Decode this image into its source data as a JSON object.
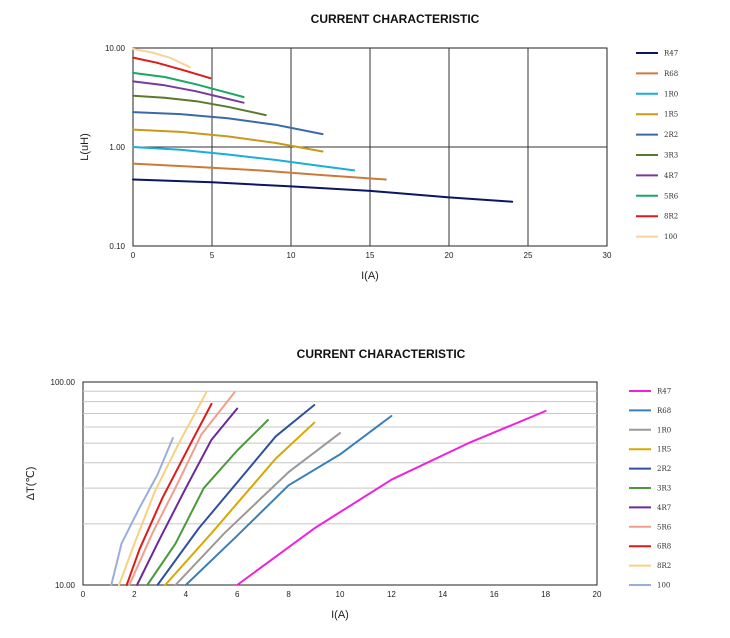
{
  "chart_data": [
    {
      "type": "line",
      "title": "CURRENT CHARACTERISTIC",
      "xlabel": "I(A)",
      "ylabel": "L(uH)",
      "xlim": [
        0,
        30
      ],
      "ylim": [
        0.1,
        10
      ],
      "yscale": "log",
      "xticks": [
        "0",
        "5",
        "10",
        "15",
        "20",
        "25",
        "30"
      ],
      "yticks": [
        "0.10",
        "1.00",
        "10.00"
      ],
      "grid": true,
      "legend_position": "right",
      "series": [
        {
          "name": "R47",
          "color": "#0b1560",
          "x": [
            0,
            5,
            10,
            15,
            20,
            24
          ],
          "y": [
            0.47,
            0.44,
            0.4,
            0.36,
            0.31,
            0.28
          ]
        },
        {
          "name": "R68",
          "color": "#cc7a3a",
          "x": [
            0,
            4,
            8,
            12,
            16
          ],
          "y": [
            0.68,
            0.63,
            0.58,
            0.52,
            0.47
          ]
        },
        {
          "name": "1R0",
          "color": "#1aaed8",
          "x": [
            0,
            3,
            6,
            9,
            12,
            14
          ],
          "y": [
            1.0,
            0.94,
            0.84,
            0.74,
            0.64,
            0.58
          ]
        },
        {
          "name": "1R5",
          "color": "#c89a1a",
          "x": [
            0,
            3,
            6,
            9,
            12
          ],
          "y": [
            1.5,
            1.42,
            1.28,
            1.1,
            0.9
          ]
        },
        {
          "name": "2R2",
          "color": "#3a6aa8",
          "x": [
            0,
            3,
            6,
            9,
            12
          ],
          "y": [
            2.25,
            2.15,
            1.95,
            1.68,
            1.35
          ]
        },
        {
          "name": "3R3",
          "color": "#5a7a2a",
          "x": [
            0,
            2,
            4,
            6,
            8.4
          ],
          "y": [
            3.3,
            3.15,
            2.9,
            2.55,
            2.1
          ]
        },
        {
          "name": "4R7",
          "color": "#7a3a9a",
          "x": [
            0,
            2,
            4,
            5.5,
            7
          ],
          "y": [
            4.6,
            4.2,
            3.65,
            3.2,
            2.8
          ]
        },
        {
          "name": "5R6",
          "color": "#1aa860",
          "x": [
            0,
            2,
            4,
            5.5,
            7
          ],
          "y": [
            5.6,
            5.1,
            4.3,
            3.7,
            3.2
          ]
        },
        {
          "name": "8R2",
          "color": "#dd1a1a",
          "x": [
            0,
            1.5,
            3,
            4.9
          ],
          "y": [
            8.0,
            7.1,
            6.1,
            4.95
          ]
        },
        {
          "name": "100",
          "color": "#f8d49a",
          "x": [
            0,
            1.2,
            2.4,
            3.6
          ],
          "y": [
            9.8,
            9.0,
            7.9,
            6.4
          ]
        }
      ]
    },
    {
      "type": "line",
      "title": "CURRENT CHARACTERISTIC",
      "xlabel": "I(A)",
      "ylabel": "ΔT(℃)",
      "xlim": [
        0,
        20
      ],
      "ylim": [
        10,
        100
      ],
      "yscale": "log",
      "xticks": [
        "0",
        "2",
        "4",
        "6",
        "8",
        "10",
        "12",
        "14",
        "16",
        "18",
        "20"
      ],
      "yticks": [
        "10.00",
        "100.00"
      ],
      "grid": true,
      "legend_position": "right",
      "series": [
        {
          "name": "R47",
          "color": "#ee22dd",
          "x": [
            6,
            9,
            12,
            15,
            18
          ],
          "y": [
            10,
            19,
            33,
            50,
            72
          ]
        },
        {
          "name": "R68",
          "color": "#3a80b8",
          "x": [
            4,
            6,
            8,
            10,
            12
          ],
          "y": [
            10,
            17.5,
            31,
            44,
            68
          ]
        },
        {
          "name": "1R0",
          "color": "#999999",
          "x": [
            3.6,
            5.5,
            8,
            10
          ],
          "y": [
            10,
            18,
            36,
            56
          ]
        },
        {
          "name": "1R5",
          "color": "#d8a800",
          "x": [
            3.2,
            5,
            7.5,
            9
          ],
          "y": [
            10,
            18,
            42,
            63
          ]
        },
        {
          "name": "2R2",
          "color": "#3050a0",
          "x": [
            2.9,
            4.5,
            7.5,
            9
          ],
          "y": [
            10,
            19,
            54,
            77
          ]
        },
        {
          "name": "3R3",
          "color": "#4a9a3a",
          "x": [
            2.5,
            3.6,
            4.7,
            6,
            7.2
          ],
          "y": [
            10,
            16,
            30,
            46,
            65
          ]
        },
        {
          "name": "4R7",
          "color": "#6a2a9a",
          "x": [
            2.1,
            3,
            4,
            5,
            6
          ],
          "y": [
            10,
            17,
            30,
            52,
            74
          ]
        },
        {
          "name": "5R6",
          "color": "#f0a088",
          "x": [
            1.8,
            2.7,
            3.7,
            4.6,
            5.9
          ],
          "y": [
            10,
            18,
            32,
            55,
            89
          ]
        },
        {
          "name": "6R8",
          "color": "#dd1a1a",
          "x": [
            1.7,
            2.2,
            3.1,
            4.2,
            5
          ],
          "y": [
            10,
            15,
            27,
            50,
            78
          ]
        },
        {
          "name": "8R2",
          "color": "#f8d080",
          "x": [
            1.4,
            2,
            2.8,
            3.8,
            4.8
          ],
          "y": [
            10,
            16,
            29,
            52,
            89
          ]
        },
        {
          "name": "100",
          "color": "#9aaedb",
          "x": [
            1.1,
            1.5,
            2.2,
            2.9,
            3.5
          ],
          "y": [
            10,
            16,
            24,
            35,
            53
          ]
        }
      ]
    }
  ]
}
